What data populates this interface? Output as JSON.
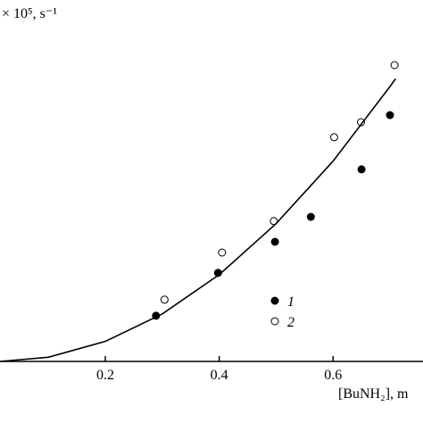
{
  "chart_data": {
    "type": "scatter",
    "xlabel": "[BuNH₂], m",
    "ylabel": "× 10⁵, s⁻¹",
    "xlim": [
      0.015,
      0.758
    ],
    "ylim": [
      0,
      10
    ],
    "xticks": [
      0.2,
      0.4,
      0.6
    ],
    "series": [
      {
        "name": "1",
        "marker": "filled",
        "color": "#000000",
        "x": [
          0.289,
          0.398,
          0.498,
          0.561,
          0.65,
          0.7
        ],
        "values": [
          1.28,
          2.48,
          3.35,
          4.05,
          5.38,
          6.9
        ]
      },
      {
        "name": "2",
        "marker": "open",
        "color": "#000000",
        "x": [
          0.304,
          0.405,
          0.496,
          0.602,
          0.649,
          0.708
        ],
        "values": [
          1.73,
          3.05,
          3.93,
          6.28,
          6.7,
          8.3
        ]
      },
      {
        "marker": "line",
        "color": "#000000",
        "x": [
          0.015,
          0.1,
          0.2,
          0.3,
          0.4,
          0.5,
          0.6,
          0.7,
          0.71
        ],
        "values": [
          0,
          0.118,
          0.561,
          1.33,
          2.43,
          3.86,
          5.61,
          7.7,
          7.92
        ]
      }
    ]
  }
}
